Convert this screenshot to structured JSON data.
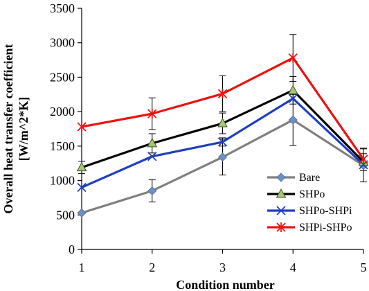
{
  "chart_data": {
    "type": "line",
    "title": "",
    "xlabel": "Condition number",
    "ylabel_lines": [
      "Overall heat transfer coefficient",
      "[W/m^2*K]"
    ],
    "x": [
      1,
      2,
      3,
      4,
      5
    ],
    "x_tick_labels": [
      "1",
      "2",
      "3",
      "4",
      "5"
    ],
    "xlim": [
      1,
      5
    ],
    "ylim": [
      0,
      3500
    ],
    "y_ticks": [
      0,
      500,
      1000,
      1500,
      2000,
      2500,
      3000,
      3500
    ],
    "y_tick_labels": [
      "0",
      "500",
      "1000",
      "1500",
      "2000",
      "2500",
      "3000",
      "3500"
    ],
    "grid": false,
    "legend_position": "bottom-right",
    "series": [
      {
        "name": "Bare",
        "color": "#7f7f7f",
        "marker_color": "#6e8fbf",
        "marker": "diamond",
        "values": [
          530,
          850,
          1340,
          1880,
          1220
        ],
        "errors": [
          0,
          160,
          260,
          370,
          240
        ]
      },
      {
        "name": "SHPo",
        "color": "#000000",
        "marker_color": "#a9c47f",
        "marker": "triangle",
        "values": [
          1190,
          1540,
          1830,
          2310,
          1270
        ],
        "errors": [
          90,
          140,
          150,
          200,
          120
        ]
      },
      {
        "name": "SHPo-SHPi",
        "color": "#1f3fbf",
        "marker_color": "#1f3fbf",
        "marker": "x",
        "values": [
          900,
          1350,
          1560,
          2190,
          1230
        ],
        "errors": [
          0,
          0,
          60,
          0,
          0
        ]
      },
      {
        "name": "SHPi-SHPo",
        "color": "#ee1111",
        "marker_color": "#ee1111",
        "marker": "star",
        "values": [
          1780,
          1970,
          2260,
          2780,
          1310
        ],
        "errors": [
          0,
          230,
          260,
          340,
          160
        ]
      }
    ]
  }
}
